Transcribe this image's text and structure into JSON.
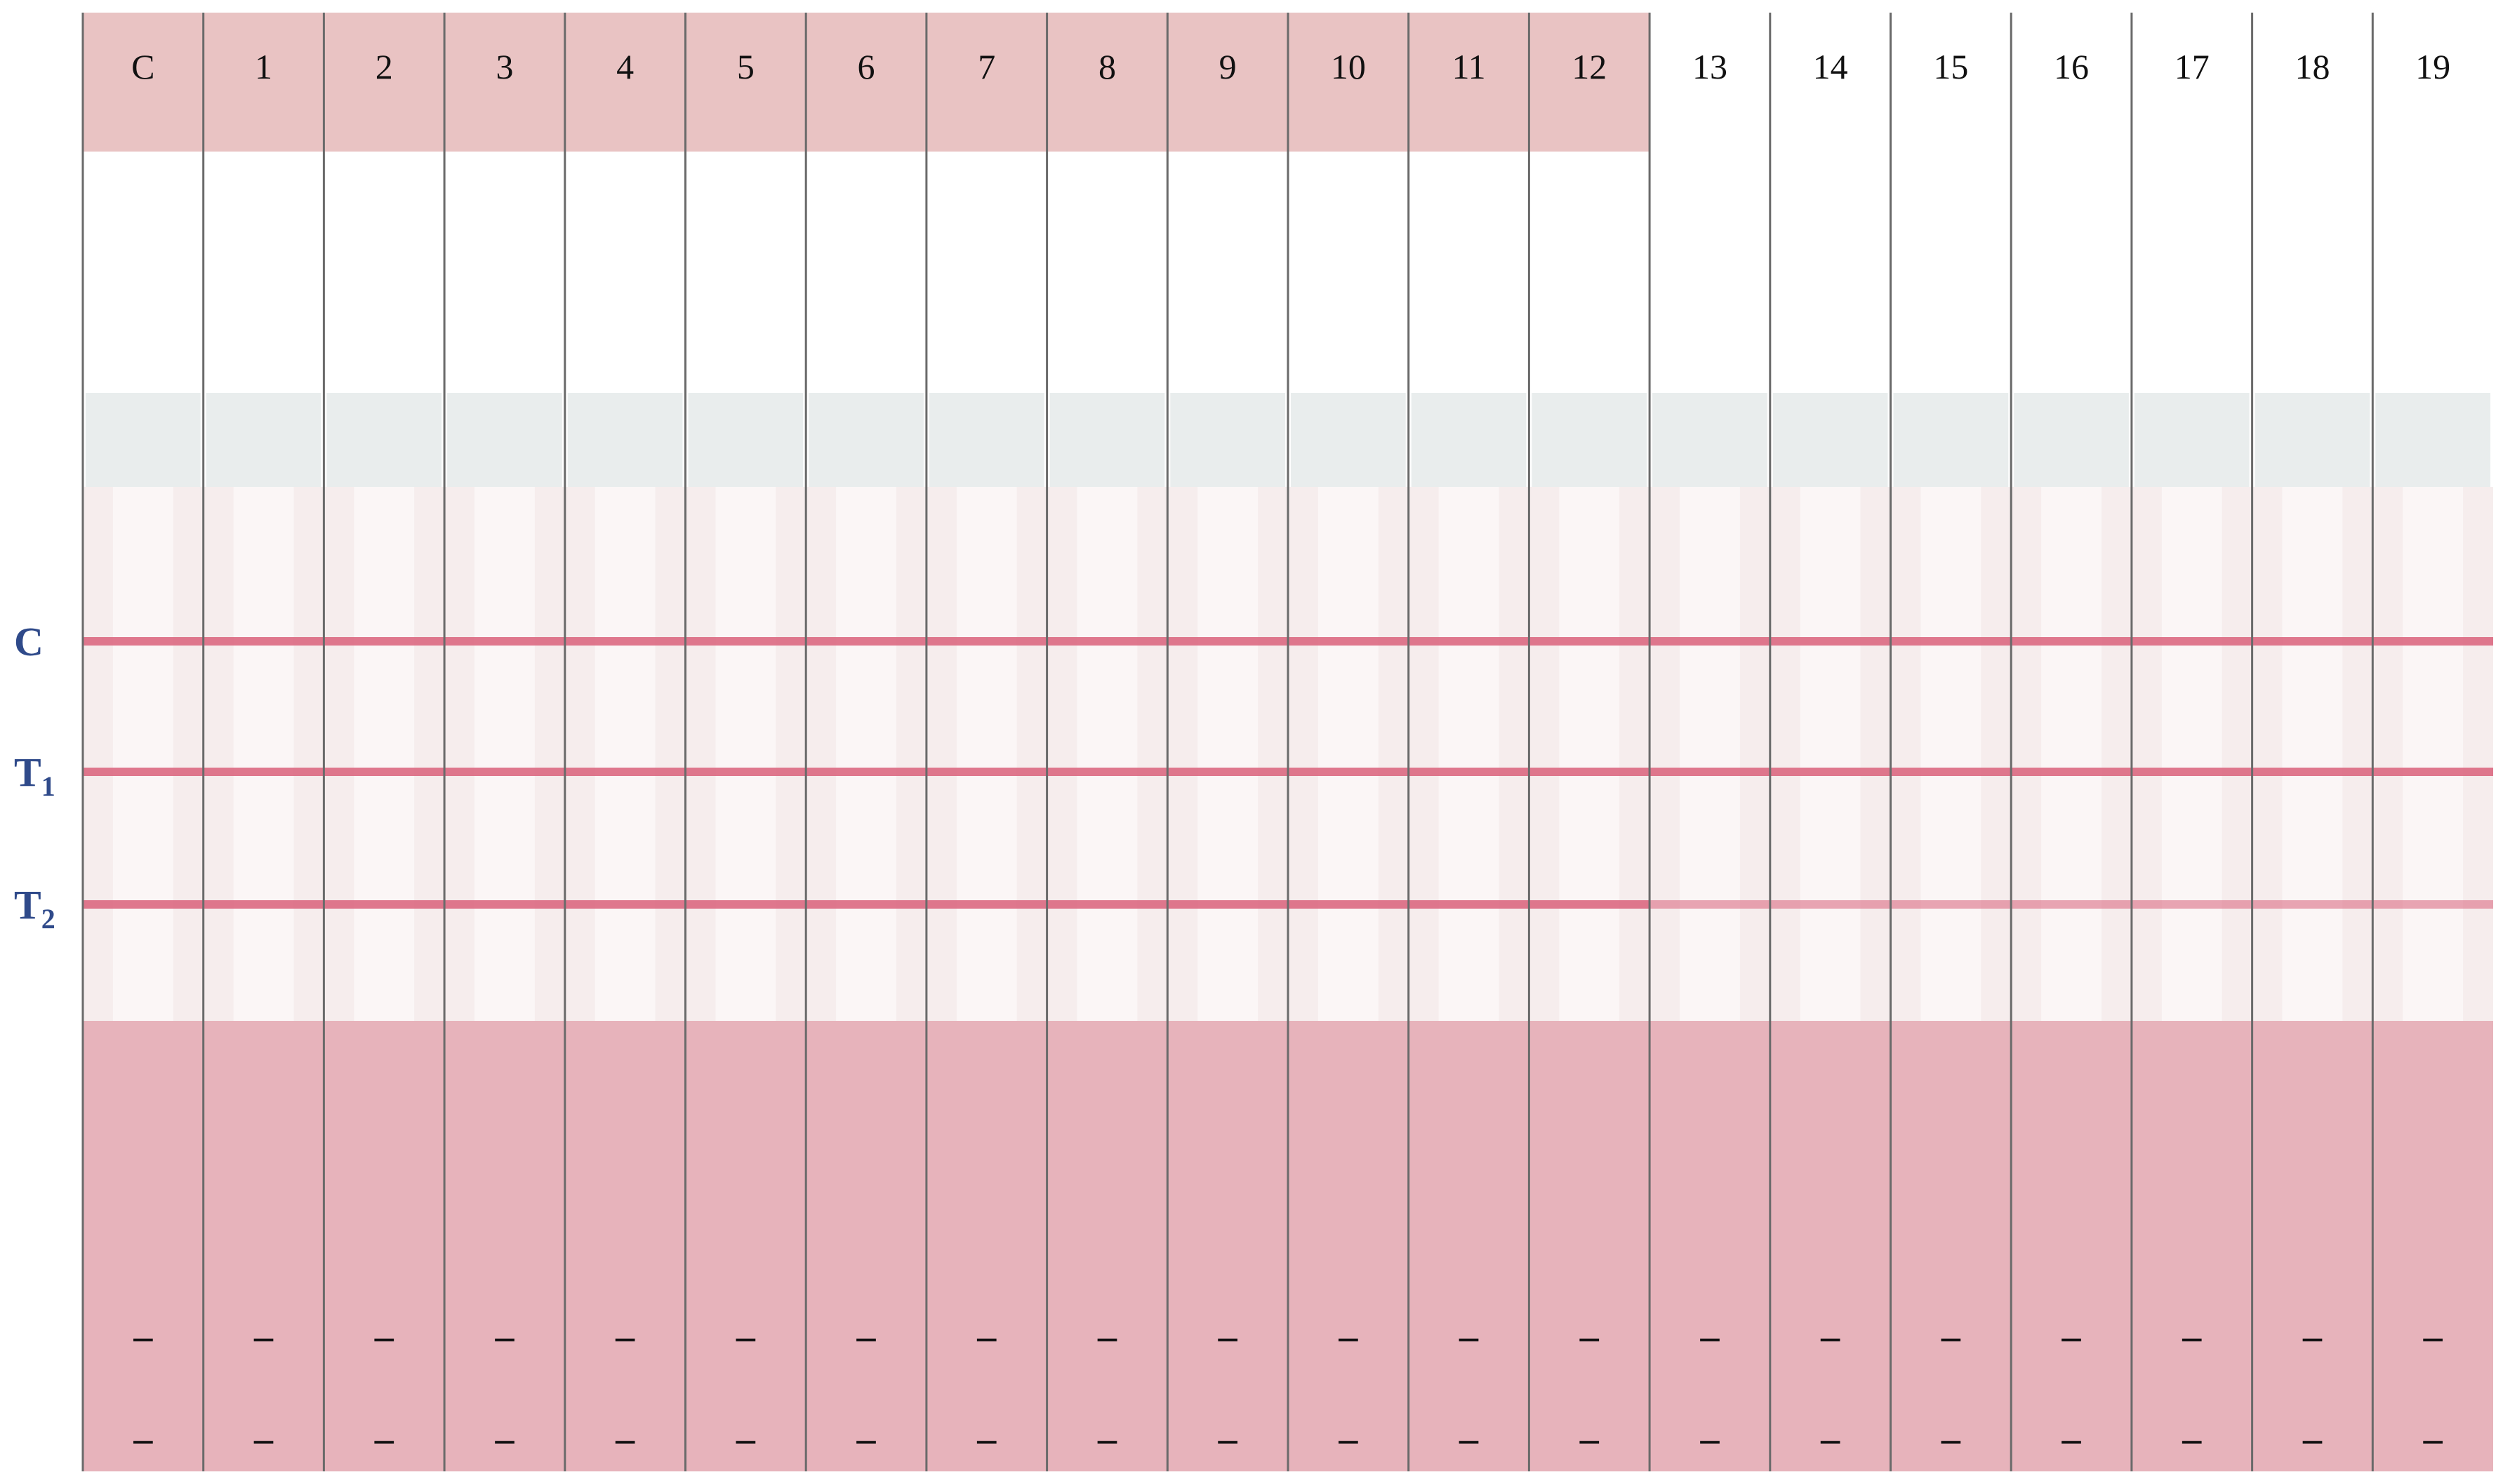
{
  "strips": [
    {
      "label": "C",
      "signs": [
        "–",
        "–"
      ]
    },
    {
      "label": "1",
      "signs": [
        "–",
        "–"
      ]
    },
    {
      "label": "2",
      "signs": [
        "–",
        "–"
      ]
    },
    {
      "label": "3",
      "signs": [
        "–",
        "–"
      ]
    },
    {
      "label": "4",
      "signs": [
        "–",
        "–"
      ]
    },
    {
      "label": "5",
      "signs": [
        "–",
        "–"
      ]
    },
    {
      "label": "6",
      "signs": [
        "–",
        "–"
      ]
    },
    {
      "label": "7",
      "signs": [
        "–",
        "–"
      ]
    },
    {
      "label": "8",
      "signs": [
        "–",
        "–"
      ]
    },
    {
      "label": "9",
      "signs": [
        "–",
        "–"
      ]
    },
    {
      "label": "10",
      "signs": [
        "–",
        "–"
      ]
    },
    {
      "label": "11",
      "signs": [
        "–",
        "–"
      ]
    },
    {
      "label": "12",
      "signs": [
        "–",
        "–"
      ]
    },
    {
      "label": "13",
      "signs": [
        "–",
        "–"
      ]
    },
    {
      "label": "14",
      "signs": [
        "–",
        "–"
      ]
    },
    {
      "label": "15",
      "signs": [
        "–",
        "–"
      ]
    },
    {
      "label": "16",
      "signs": [
        "–",
        "–"
      ]
    },
    {
      "label": "17",
      "signs": [
        "–",
        "–"
      ]
    },
    {
      "label": "18",
      "signs": [
        "–",
        "–"
      ]
    },
    {
      "label": "19",
      "signs": [
        "–",
        "–"
      ]
    }
  ],
  "line_labels": [
    {
      "letter": "C"
    },
    {
      "letter": "T",
      "subscript": "1"
    },
    {
      "letter": "T",
      "subscript": "2"
    }
  ]
}
